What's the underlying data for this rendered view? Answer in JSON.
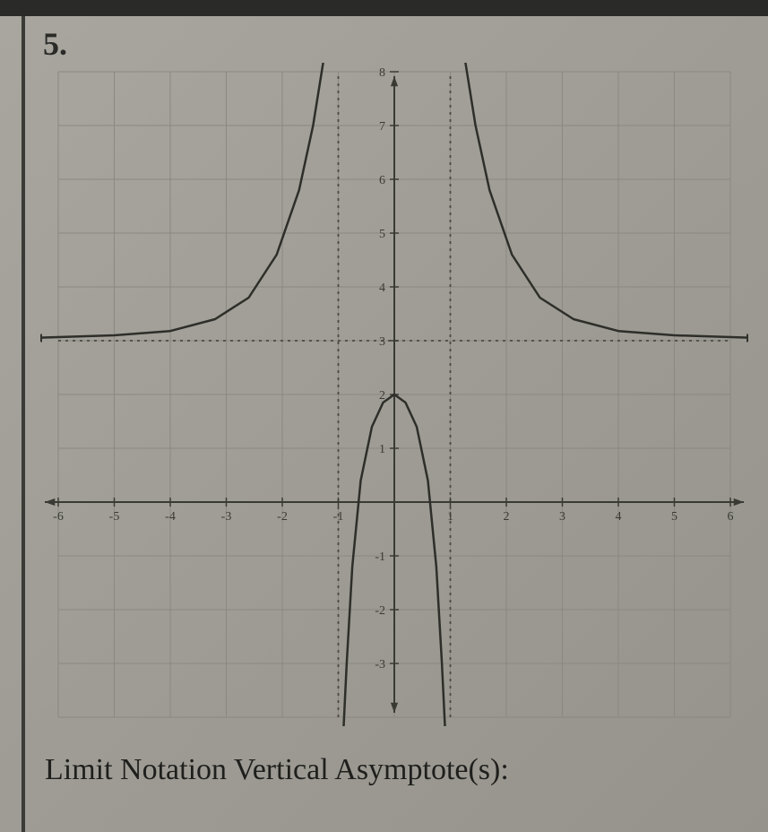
{
  "problem": {
    "number": "5."
  },
  "prompt": "Limit Notation Vertical Asymptote(s):",
  "chart": {
    "type": "function-graph",
    "background_color": "#a5a39b",
    "grid_color": "#8a8880",
    "axis_color": "#3a3a34",
    "curve_color": "#2e2e2a",
    "asymptote_color": "#4a4a44",
    "tick_fontsize": 14,
    "tick_color": "#3a3a34",
    "xlim": [
      -6,
      6
    ],
    "ylim": [
      -4,
      8
    ],
    "xtick_step": 1,
    "ytick_step": 1,
    "x_ticks": [
      -6,
      -5,
      -4,
      -3,
      -2,
      -1,
      1,
      2,
      3,
      4,
      5,
      6
    ],
    "y_ticks": [
      -3,
      -2,
      -1,
      1,
      2,
      3,
      4,
      5,
      6,
      7,
      8
    ],
    "vertical_asymptotes": [
      -1,
      1
    ],
    "horizontal_asymptote": 3,
    "curve_width": 2.5,
    "grid_width": 1,
    "axis_width": 2,
    "asymptote_dash": "3,5",
    "branches": {
      "left_outer": {
        "description": "x < -1, approaches y=3 from above as x->-inf, goes to +inf as x->-1^-",
        "points": [
          [
            -6.5,
            3.05
          ],
          [
            -5,
            3.1
          ],
          [
            -4,
            3.18
          ],
          [
            -3.2,
            3.4
          ],
          [
            -2.6,
            3.8
          ],
          [
            -2.1,
            4.6
          ],
          [
            -1.7,
            5.8
          ],
          [
            -1.45,
            7.0
          ],
          [
            -1.25,
            8.3
          ],
          [
            -1.12,
            9.5
          ]
        ]
      },
      "right_outer": {
        "description": "x > 1, approaches y=3 from above as x->+inf, goes to +inf as x->1^+",
        "points": [
          [
            1.12,
            9.5
          ],
          [
            1.25,
            8.3
          ],
          [
            1.45,
            7.0
          ],
          [
            1.7,
            5.8
          ],
          [
            2.1,
            4.6
          ],
          [
            2.6,
            3.8
          ],
          [
            3.2,
            3.4
          ],
          [
            4,
            3.18
          ],
          [
            5,
            3.1
          ],
          [
            6.5,
            3.05
          ]
        ]
      },
      "middle": {
        "description": "-1 < x < 1, parabola-like opening downward, peak ~ (0,2), goes to -inf at both asymptotes",
        "points": [
          [
            -0.92,
            -4.5
          ],
          [
            -0.85,
            -3.0
          ],
          [
            -0.75,
            -1.2
          ],
          [
            -0.6,
            0.4
          ],
          [
            -0.4,
            1.4
          ],
          [
            -0.2,
            1.85
          ],
          [
            0,
            2.0
          ],
          [
            0.2,
            1.85
          ],
          [
            0.4,
            1.4
          ],
          [
            0.6,
            0.4
          ],
          [
            0.75,
            -1.2
          ],
          [
            0.85,
            -3.0
          ],
          [
            0.92,
            -4.5
          ]
        ]
      }
    }
  }
}
